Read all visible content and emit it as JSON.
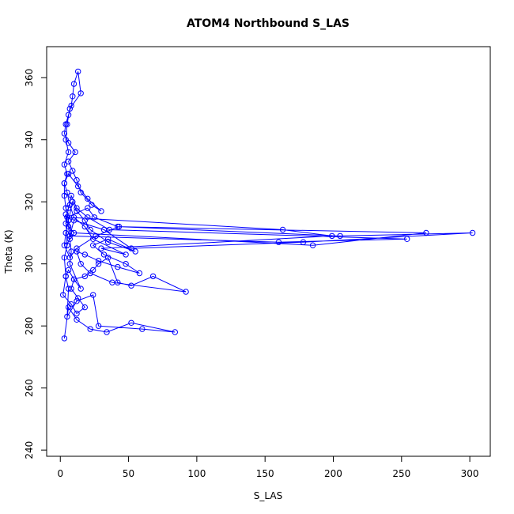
{
  "chart_data": {
    "type": "line",
    "title": "ATOM4 Northbound S_LAS",
    "xlabel": "S_LAS",
    "ylabel": "Theta (K)",
    "xlim": [
      -10,
      315
    ],
    "ylim": [
      238,
      370
    ],
    "xticks": [
      0,
      50,
      100,
      150,
      200,
      250,
      300
    ],
    "yticks": [
      240,
      260,
      280,
      300,
      320,
      340,
      360
    ],
    "grid": false,
    "color": "#0000ff",
    "marker": "open-circle",
    "series": [
      {
        "name": "",
        "x": [
          3,
          6,
          12,
          22,
          34,
          52,
          84,
          60,
          28,
          24,
          12,
          5,
          6,
          4,
          6,
          10,
          15,
          7,
          8,
          7,
          6,
          4,
          5,
          3,
          4,
          2,
          8,
          12,
          18,
          13,
          8,
          10,
          18,
          24,
          28,
          35,
          42,
          52,
          68,
          92,
          38,
          22,
          15,
          12,
          18,
          28,
          42,
          58,
          48,
          32,
          24,
          35,
          55,
          35,
          22,
          18,
          12,
          9,
          6,
          4,
          3,
          7,
          12,
          26,
          43,
          205,
          302,
          178,
          52,
          32,
          10,
          7,
          160,
          254,
          36,
          20,
          12,
          8,
          6,
          4,
          10,
          185,
          268,
          42,
          25,
          20,
          5,
          163,
          199,
          30,
          48,
          24,
          18,
          10,
          7,
          5,
          3,
          6,
          13,
          20,
          30,
          23,
          15,
          12,
          9,
          6,
          11,
          6,
          3,
          4,
          6,
          8,
          9,
          10,
          13,
          15,
          7,
          5,
          4,
          6,
          3,
          5,
          3,
          3,
          4,
          6,
          8,
          5
        ],
        "y": [
          276,
          286,
          282,
          279,
          278,
          281,
          278,
          279,
          280,
          290,
          288,
          283,
          292,
          296,
          298,
          295,
          292,
          300,
          304,
          308,
          312,
          316,
          306,
          302,
          296,
          290,
          287,
          284,
          286,
          289,
          292,
          295,
          296,
          298,
          300,
          302,
          294,
          293,
          296,
          291,
          294,
          297,
          300,
          304,
          303,
          301,
          299,
          297,
          300,
          303,
          306,
          308,
          304,
          307,
          311,
          314,
          317,
          320,
          314,
          310,
          306,
          302,
          305,
          309,
          312,
          309,
          310,
          307,
          305,
          311,
          314,
          309,
          307,
          308,
          311,
          315,
          318,
          322,
          318,
          313,
          310,
          306,
          310,
          312,
          315,
          318,
          315,
          311,
          309,
          305,
          303,
          308,
          312,
          315,
          319,
          323,
          326,
          329,
          325,
          321,
          317,
          319,
          323,
          327,
          330,
          333,
          336,
          339,
          342,
          345,
          348,
          351,
          354,
          358,
          362,
          355,
          350,
          345,
          340,
          336,
          332,
          329,
          326,
          322,
          318,
          314,
          310,
          306
        ]
      }
    ]
  }
}
